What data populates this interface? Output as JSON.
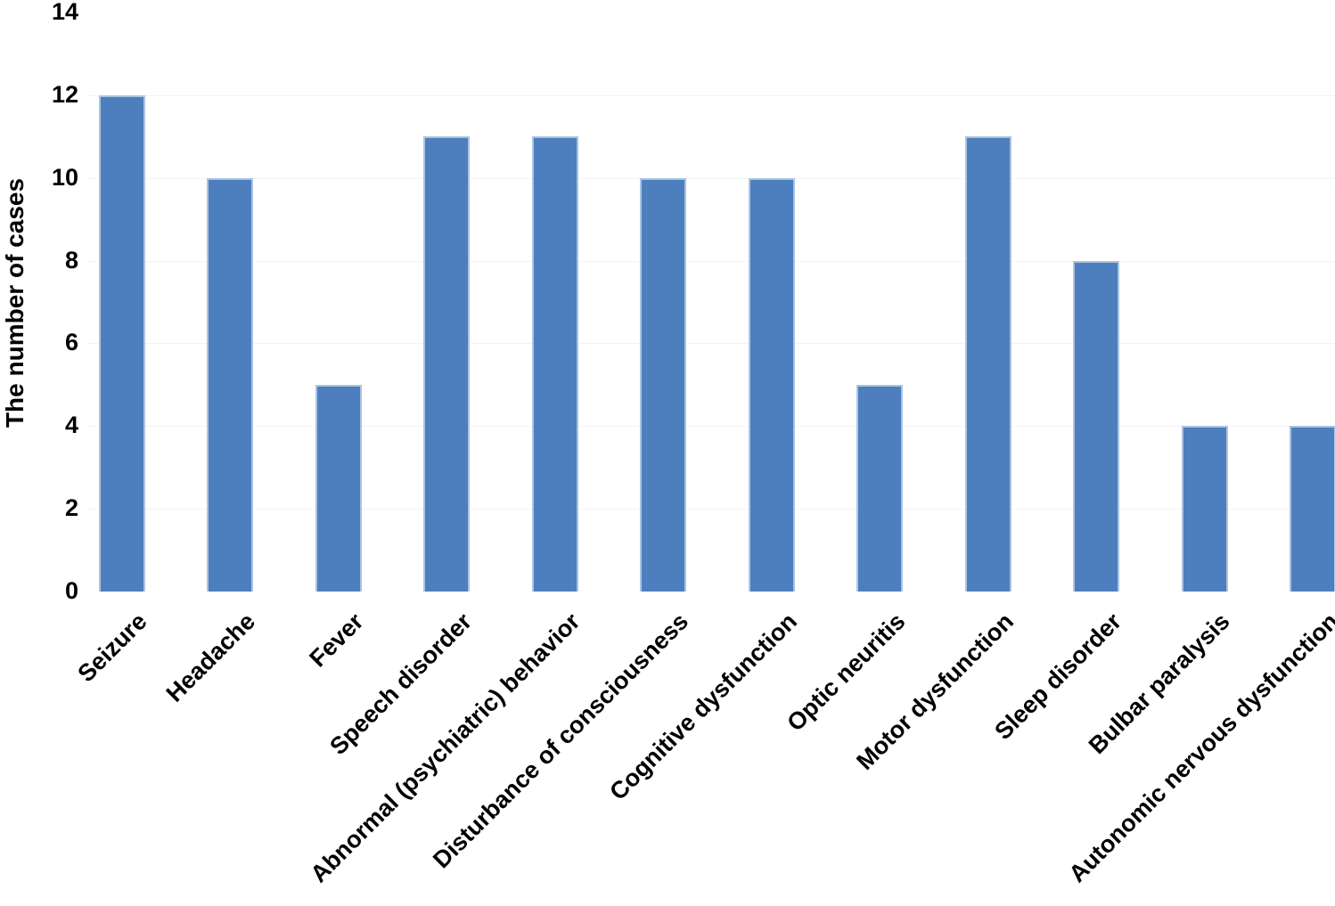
{
  "chart_data": {
    "type": "bar",
    "title": "",
    "xlabel": "",
    "ylabel": "The number of cases",
    "categories": [
      "Seizure",
      "Headache",
      "Fever",
      "Speech disorder",
      "Abnormal (psychiatric) behavior",
      "Disturbance of consciousness",
      "Cognitive dysfunction",
      "Optic neuritis",
      "Motor dysfunction",
      "Sleep disorder",
      "Bulbar paralysis",
      "Autonomic nervous dysfunction"
    ],
    "values": [
      12,
      10,
      5,
      11,
      11,
      10,
      10,
      5,
      11,
      8,
      4,
      4
    ],
    "ylim": [
      0,
      14
    ],
    "yticks": [
      0,
      2,
      4,
      6,
      8,
      10,
      12,
      14
    ],
    "legend": "none",
    "grid": "faint-horizontal-major",
    "x_tick_label_rotation_deg": 45,
    "colors": {
      "bar_fill": "#4d7fbe",
      "bar_border": "#aac4e1",
      "gridline": "#f2f3f5",
      "text": "#000000",
      "background": "#ffffff"
    }
  }
}
